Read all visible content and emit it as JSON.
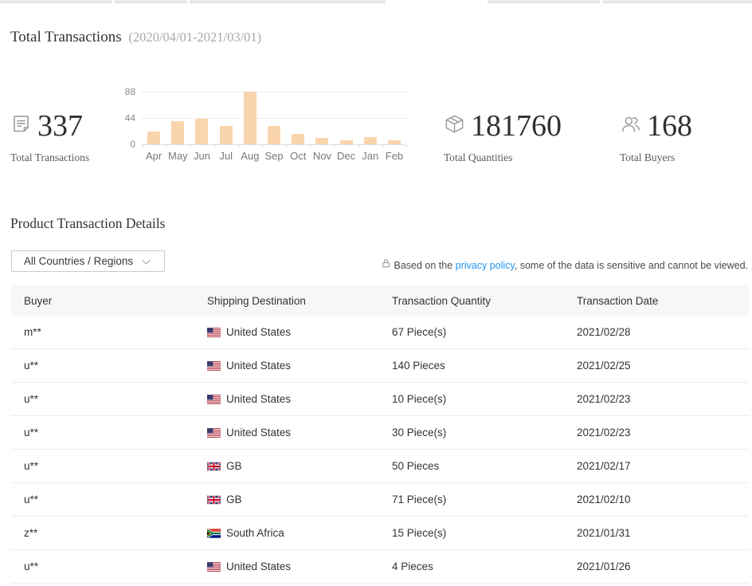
{
  "page": {
    "title": "Total Transactions",
    "date_range": "(2020/04/01-2021/03/01)"
  },
  "stats": [
    {
      "icon": "document-icon",
      "value": "337",
      "label": "Total Transactions"
    },
    {
      "icon": "package-icon",
      "value": "181760",
      "label": "Total Quantities"
    },
    {
      "icon": "buyers-icon",
      "value": "168",
      "label": "Total Buyers"
    }
  ],
  "chart_data": {
    "type": "bar",
    "title": "",
    "xlabel": "",
    "ylabel": "",
    "categories": [
      "Apr",
      "May",
      "Jun",
      "Jul",
      "Aug",
      "Sep",
      "Oct",
      "Nov",
      "Dec",
      "Jan",
      "Feb"
    ],
    "values": [
      21,
      39,
      42,
      30,
      88,
      30,
      17,
      11,
      6,
      12,
      6
    ],
    "yticks": [
      0,
      44,
      88
    ],
    "ylim": [
      0,
      88
    ],
    "grid": "horizontal-dashed",
    "legend": "none",
    "bar_color": "#FAD4AC"
  },
  "details": {
    "heading": "Product Transaction Details",
    "filter_label": "All Countries / Regions",
    "privacy_prefix": "Based on the ",
    "privacy_link": "privacy policy",
    "privacy_suffix": ", some of the data is sensitive and cannot be viewed."
  },
  "table": {
    "columns": [
      "Buyer",
      "Shipping Destination",
      "Transaction Quantity",
      "Transaction Date"
    ],
    "rows": [
      {
        "buyer": "m**",
        "flag": "us",
        "destination": "United States",
        "quantity": "67 Piece(s)",
        "date": "2021/02/28"
      },
      {
        "buyer": "u**",
        "flag": "us",
        "destination": "United States",
        "quantity": "140 Pieces",
        "date": "2021/02/25"
      },
      {
        "buyer": "u**",
        "flag": "us",
        "destination": "United States",
        "quantity": "10 Piece(s)",
        "date": "2021/02/23"
      },
      {
        "buyer": "u**",
        "flag": "us",
        "destination": "United States",
        "quantity": "30 Piece(s)",
        "date": "2021/02/23"
      },
      {
        "buyer": "u**",
        "flag": "gb",
        "destination": "GB",
        "quantity": "50 Pieces",
        "date": "2021/02/17"
      },
      {
        "buyer": "u**",
        "flag": "gb",
        "destination": "GB",
        "quantity": "71 Piece(s)",
        "date": "2021/02/10"
      },
      {
        "buyer": "z**",
        "flag": "za",
        "destination": "South Africa",
        "quantity": "15 Piece(s)",
        "date": "2021/01/31"
      },
      {
        "buyer": "u**",
        "flag": "us",
        "destination": "United States",
        "quantity": "4 Pieces",
        "date": "2021/01/26"
      }
    ]
  },
  "colors": {
    "link_blue": "#2196F3",
    "bar_peach": "#FAD4AC",
    "table_header_bg": "#F7F7F9",
    "text_dark": "#333333",
    "text_muted": "#A9A9A9"
  }
}
